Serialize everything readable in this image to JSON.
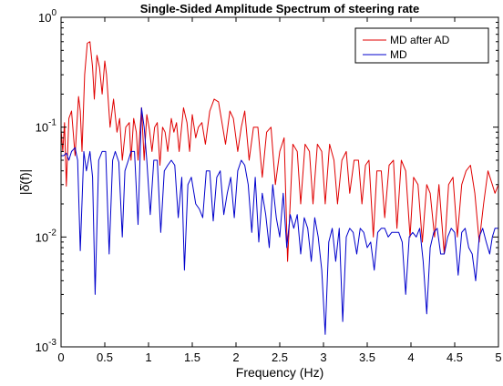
{
  "chart_data": {
    "type": "line",
    "title": "Single-Sided Amplitude Spectrum of steering rate",
    "xlabel": "Frequency (Hz)",
    "ylabel": "|δ̇(f)|",
    "xlim": [
      0,
      5
    ],
    "ylim": [
      0.001,
      1
    ],
    "yscale": "log",
    "x_ticks": [
      0,
      0.5,
      1,
      1.5,
      2,
      2.5,
      3,
      3.5,
      4,
      4.5,
      5
    ],
    "x_tick_labels": [
      "0",
      "0.5",
      "1",
      "1.5",
      "2",
      "2.5",
      "3",
      "3.5",
      "4",
      "4.5",
      "5"
    ],
    "y_ticks": [
      0.001,
      0.01,
      0.1,
      1
    ],
    "y_tick_labels": [
      {
        "base": "10",
        "exp": "-3"
      },
      {
        "base": "10",
        "exp": "-2"
      },
      {
        "base": "10",
        "exp": "-1"
      },
      {
        "base": "10",
        "exp": "0"
      }
    ],
    "grid": false,
    "legend_position": "top-right",
    "series": [
      {
        "name": "MD after AD",
        "color": "#e00000",
        "points": [
          [
            0.0,
            0.095
          ],
          [
            0.02,
            0.06
          ],
          [
            0.04,
            0.11
          ],
          [
            0.06,
            0.029
          ],
          [
            0.09,
            0.12
          ],
          [
            0.12,
            0.14
          ],
          [
            0.16,
            0.055
          ],
          [
            0.2,
            0.19
          ],
          [
            0.22,
            0.14
          ],
          [
            0.24,
            0.06
          ],
          [
            0.27,
            0.3
          ],
          [
            0.3,
            0.58
          ],
          [
            0.33,
            0.6
          ],
          [
            0.36,
            0.35
          ],
          [
            0.38,
            0.18
          ],
          [
            0.41,
            0.45
          ],
          [
            0.44,
            0.35
          ],
          [
            0.47,
            0.2
          ],
          [
            0.5,
            0.4
          ],
          [
            0.52,
            0.3
          ],
          [
            0.56,
            0.1
          ],
          [
            0.6,
            0.18
          ],
          [
            0.64,
            0.09
          ],
          [
            0.67,
            0.12
          ],
          [
            0.7,
            0.05
          ],
          [
            0.74,
            0.1
          ],
          [
            0.78,
            0.11
          ],
          [
            0.8,
            0.05
          ],
          [
            0.83,
            0.12
          ],
          [
            0.86,
            0.09
          ],
          [
            0.88,
            0.05
          ],
          [
            0.92,
            0.15
          ],
          [
            0.95,
            0.05
          ],
          [
            0.98,
            0.13
          ],
          [
            1.01,
            0.095
          ],
          [
            1.04,
            0.06
          ],
          [
            1.07,
            0.1
          ],
          [
            1.1,
            0.11
          ],
          [
            1.13,
            0.045
          ],
          [
            1.16,
            0.1
          ],
          [
            1.19,
            0.09
          ],
          [
            1.22,
            0.06
          ],
          [
            1.26,
            0.12
          ],
          [
            1.29,
            0.09
          ],
          [
            1.32,
            0.11
          ],
          [
            1.35,
            0.06
          ],
          [
            1.4,
            0.15
          ],
          [
            1.44,
            0.11
          ],
          [
            1.47,
            0.06
          ],
          [
            1.5,
            0.13
          ],
          [
            1.54,
            0.08
          ],
          [
            1.57,
            0.1
          ],
          [
            1.61,
            0.11
          ],
          [
            1.65,
            0.07
          ],
          [
            1.7,
            0.14
          ],
          [
            1.75,
            0.18
          ],
          [
            1.8,
            0.17
          ],
          [
            1.84,
            0.11
          ],
          [
            1.88,
            0.07
          ],
          [
            1.93,
            0.14
          ],
          [
            1.97,
            0.12
          ],
          [
            2.02,
            0.06
          ],
          [
            2.06,
            0.1
          ],
          [
            2.1,
            0.14
          ],
          [
            2.15,
            0.05
          ],
          [
            2.2,
            0.1
          ],
          [
            2.25,
            0.1
          ],
          [
            2.3,
            0.035
          ],
          [
            2.35,
            0.09
          ],
          [
            2.4,
            0.1
          ],
          [
            2.45,
            0.03
          ],
          [
            2.5,
            0.06
          ],
          [
            2.55,
            0.08
          ],
          [
            2.59,
            0.006
          ],
          [
            2.65,
            0.07
          ],
          [
            2.7,
            0.06
          ],
          [
            2.74,
            0.02
          ],
          [
            2.79,
            0.07
          ],
          [
            2.84,
            0.06
          ],
          [
            2.88,
            0.02
          ],
          [
            2.93,
            0.07
          ],
          [
            2.98,
            0.06
          ],
          [
            3.02,
            0.02
          ],
          [
            3.07,
            0.07
          ],
          [
            3.12,
            0.05
          ],
          [
            3.16,
            0.02
          ],
          [
            3.21,
            0.05
          ],
          [
            3.26,
            0.06
          ],
          [
            3.3,
            0.025
          ],
          [
            3.35,
            0.05
          ],
          [
            3.4,
            0.05
          ],
          [
            3.44,
            0.02
          ],
          [
            3.48,
            0.045
          ],
          [
            3.52,
            0.05
          ],
          [
            3.57,
            0.01
          ],
          [
            3.61,
            0.04
          ],
          [
            3.66,
            0.04
          ],
          [
            3.7,
            0.015
          ],
          [
            3.75,
            0.045
          ],
          [
            3.8,
            0.05
          ],
          [
            3.84,
            0.012
          ],
          [
            3.89,
            0.05
          ],
          [
            3.94,
            0.04
          ],
          [
            3.99,
            0.01
          ],
          [
            4.03,
            0.035
          ],
          [
            4.08,
            0.03
          ],
          [
            4.13,
            0.009
          ],
          [
            4.18,
            0.03
          ],
          [
            4.22,
            0.025
          ],
          [
            4.27,
            0.01
          ],
          [
            4.32,
            0.03
          ],
          [
            4.38,
            0.007
          ],
          [
            4.43,
            0.03
          ],
          [
            4.48,
            0.035
          ],
          [
            4.53,
            0.01
          ],
          [
            4.58,
            0.03
          ],
          [
            4.63,
            0.04
          ],
          [
            4.68,
            0.045
          ],
          [
            4.73,
            0.025
          ],
          [
            4.78,
            0.009
          ],
          [
            4.83,
            0.02
          ],
          [
            4.88,
            0.04
          ],
          [
            4.93,
            0.03
          ],
          [
            4.96,
            0.025
          ],
          [
            5.0,
            0.03
          ]
        ]
      },
      {
        "name": "MD",
        "color": "#0000cc",
        "points": [
          [
            0.0,
            0.055
          ],
          [
            0.03,
            0.055
          ],
          [
            0.06,
            0.058
          ],
          [
            0.09,
            0.05
          ],
          [
            0.12,
            0.06
          ],
          [
            0.16,
            0.065
          ],
          [
            0.19,
            0.05
          ],
          [
            0.22,
            0.0075
          ],
          [
            0.26,
            0.06
          ],
          [
            0.29,
            0.04
          ],
          [
            0.33,
            0.06
          ],
          [
            0.36,
            0.035
          ],
          [
            0.39,
            0.003
          ],
          [
            0.43,
            0.05
          ],
          [
            0.47,
            0.06
          ],
          [
            0.51,
            0.06
          ],
          [
            0.55,
            0.007
          ],
          [
            0.59,
            0.05
          ],
          [
            0.62,
            0.06
          ],
          [
            0.66,
            0.048
          ],
          [
            0.7,
            0.01
          ],
          [
            0.73,
            0.04
          ],
          [
            0.77,
            0.05
          ],
          [
            0.8,
            0.06
          ],
          [
            0.84,
            0.06
          ],
          [
            0.88,
            0.013
          ],
          [
            0.92,
            0.15
          ],
          [
            0.95,
            0.1
          ],
          [
            0.98,
            0.05
          ],
          [
            1.02,
            0.016
          ],
          [
            1.06,
            0.05
          ],
          [
            1.1,
            0.05
          ],
          [
            1.14,
            0.011
          ],
          [
            1.18,
            0.04
          ],
          [
            1.22,
            0.045
          ],
          [
            1.26,
            0.05
          ],
          [
            1.3,
            0.045
          ],
          [
            1.34,
            0.015
          ],
          [
            1.38,
            0.035
          ],
          [
            1.41,
            0.005
          ],
          [
            1.45,
            0.03
          ],
          [
            1.49,
            0.035
          ],
          [
            1.54,
            0.02
          ],
          [
            1.58,
            0.018
          ],
          [
            1.62,
            0.015
          ],
          [
            1.66,
            0.04
          ],
          [
            1.7,
            0.04
          ],
          [
            1.74,
            0.014
          ],
          [
            1.78,
            0.035
          ],
          [
            1.82,
            0.04
          ],
          [
            1.86,
            0.016
          ],
          [
            1.9,
            0.025
          ],
          [
            1.94,
            0.035
          ],
          [
            1.98,
            0.015
          ],
          [
            2.02,
            0.04
          ],
          [
            2.06,
            0.05
          ],
          [
            2.1,
            0.045
          ],
          [
            2.14,
            0.03
          ],
          [
            2.18,
            0.011
          ],
          [
            2.22,
            0.035
          ],
          [
            2.26,
            0.009
          ],
          [
            2.3,
            0.025
          ],
          [
            2.34,
            0.016
          ],
          [
            2.38,
            0.008
          ],
          [
            2.42,
            0.03
          ],
          [
            2.46,
            0.015
          ],
          [
            2.5,
            0.01
          ],
          [
            2.54,
            0.025
          ],
          [
            2.58,
            0.008
          ],
          [
            2.62,
            0.016
          ],
          [
            2.66,
            0.012
          ],
          [
            2.7,
            0.016
          ],
          [
            2.74,
            0.007
          ],
          [
            2.78,
            0.015
          ],
          [
            2.82,
            0.012
          ],
          [
            2.86,
            0.006
          ],
          [
            2.9,
            0.015
          ],
          [
            2.94,
            0.01
          ],
          [
            2.98,
            0.005
          ],
          [
            3.02,
            0.0013
          ],
          [
            3.06,
            0.009
          ],
          [
            3.1,
            0.012
          ],
          [
            3.14,
            0.006
          ],
          [
            3.18,
            0.012
          ],
          [
            3.22,
            0.0017
          ],
          [
            3.26,
            0.01
          ],
          [
            3.3,
            0.012
          ],
          [
            3.34,
            0.011
          ],
          [
            3.38,
            0.007
          ],
          [
            3.42,
            0.012
          ],
          [
            3.46,
            0.011
          ],
          [
            3.5,
            0.008
          ],
          [
            3.54,
            0.009
          ],
          [
            3.58,
            0.005
          ],
          [
            3.62,
            0.011
          ],
          [
            3.66,
            0.012
          ],
          [
            3.7,
            0.012
          ],
          [
            3.74,
            0.01
          ],
          [
            3.78,
            0.011
          ],
          [
            3.82,
            0.011
          ],
          [
            3.86,
            0.011
          ],
          [
            3.9,
            0.009
          ],
          [
            3.94,
            0.003
          ],
          [
            3.98,
            0.01
          ],
          [
            4.02,
            0.011
          ],
          [
            4.06,
            0.01
          ],
          [
            4.1,
            0.012
          ],
          [
            4.14,
            0.006
          ],
          [
            4.18,
            0.002
          ],
          [
            4.22,
            0.008
          ],
          [
            4.26,
            0.011
          ],
          [
            4.3,
            0.012
          ],
          [
            4.34,
            0.007
          ],
          [
            4.38,
            0.007
          ],
          [
            4.42,
            0.01
          ],
          [
            4.46,
            0.012
          ],
          [
            4.5,
            0.011
          ],
          [
            4.54,
            0.0045
          ],
          [
            4.58,
            0.011
          ],
          [
            4.62,
            0.012
          ],
          [
            4.66,
            0.008
          ],
          [
            4.7,
            0.007
          ],
          [
            4.74,
            0.004
          ],
          [
            4.78,
            0.01
          ],
          [
            4.82,
            0.012
          ],
          [
            4.86,
            0.009
          ],
          [
            4.9,
            0.007
          ],
          [
            4.93,
            0.01
          ],
          [
            4.96,
            0.012
          ],
          [
            5.0,
            0.012
          ]
        ]
      }
    ]
  }
}
